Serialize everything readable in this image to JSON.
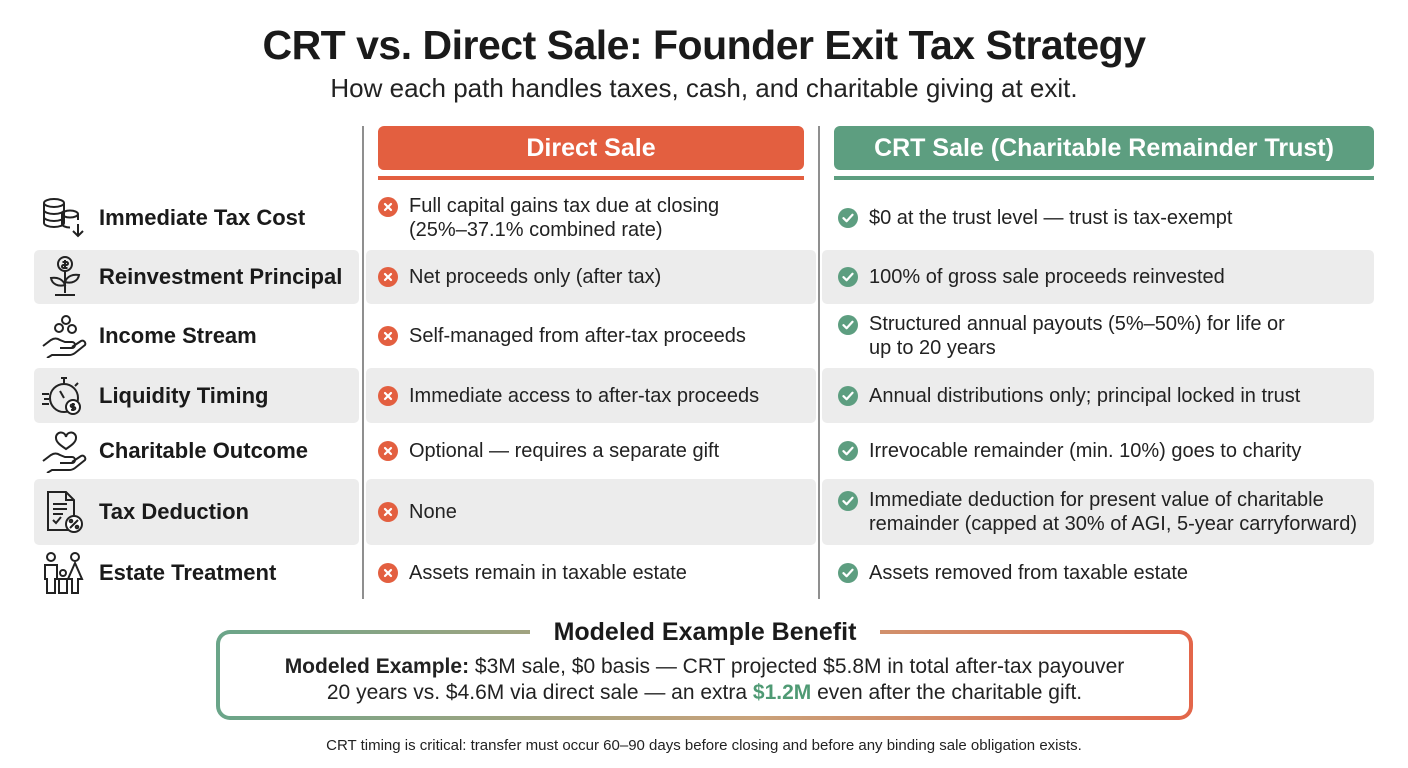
{
  "header": {
    "title": "CRT vs. Direct Sale: Founder Exit Tax Strategy",
    "subtitle": "How each path handles taxes, cash, and charitable giving at exit."
  },
  "columns": {
    "direct": "Direct Sale",
    "crt": "CRT Sale (Charitable Remainder Trust)"
  },
  "colors": {
    "direct": "#e35f40",
    "crt": "#5d9e80",
    "band": "#ececec"
  },
  "rows": [
    {
      "label": "Immediate Tax Cost",
      "icon": "coins-down-icon",
      "direct": "Full capital gains tax due at closing\n(25%–37.1% combined rate)",
      "crt": "$0 at the trust level — trust is tax-exempt"
    },
    {
      "label": "Reinvestment Principal",
      "icon": "money-plant-icon",
      "direct": "Net proceeds only (after tax)",
      "crt": "100% of gross sale proceeds reinvested"
    },
    {
      "label": "Income Stream",
      "icon": "hand-coins-icon",
      "direct": "Self-managed from after-tax proceeds",
      "crt": "Structured annual payouts (5%–50%) for life or\nup to 20 years"
    },
    {
      "label": "Liquidity Timing",
      "icon": "stopwatch-dollar-icon",
      "direct": "Immediate access to after-tax proceeds",
      "crt": "Annual distributions only; principal locked in trust"
    },
    {
      "label": "Charitable Outcome",
      "icon": "hand-heart-icon",
      "direct": "Optional — requires a separate gift",
      "crt": "Irrevocable remainder (min. 10%) goes to charity"
    },
    {
      "label": "Tax Deduction",
      "icon": "tax-document-icon",
      "direct": "None",
      "crt": "Immediate deduction for present value of charitable\nremainder (capped at 30% of AGI, 5-year carryforward)"
    },
    {
      "label": "Estate Treatment",
      "icon": "family-icon",
      "direct": "Assets remain in taxable estate",
      "crt": "Assets removed from taxable estate"
    }
  ],
  "benefit": {
    "title": "Modeled Example Benefit",
    "line1_bold": "Modeled Example:",
    "line1_rest": " $3M sale, $0 basis — CRT projected $5.8M in total after-tax payouver",
    "line2_a": "20 years vs. $4.6M via direct sale — an extra ",
    "line2_highlight": "$1.2M",
    "line2_b": " even after the charitable gift."
  },
  "footnote": "CRT timing is critical: transfer must occur 60–90 days before closing and before any binding sale obligation exists."
}
